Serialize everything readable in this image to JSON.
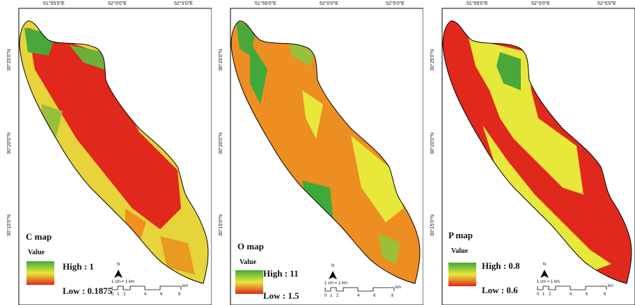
{
  "axis": {
    "lon_labels": [
      "51°55'0\"E",
      "52°0'0\"E",
      "52°5'0\"E"
    ],
    "lat_labels": [
      "30°25'0\"N",
      "30°20'0\"N",
      "30°15'0\"N"
    ]
  },
  "legend": {
    "value_label": "Value",
    "north_label": "N",
    "scale_text": "1 cm = 1 km",
    "scale_ticks": [
      "0",
      "1",
      "2",
      "4",
      "6",
      "8"
    ],
    "scale_unit": "km"
  },
  "panels": [
    {
      "title": "C map",
      "high": "High : 1",
      "low": "Low : 0.1875"
    },
    {
      "title": "O map",
      "high": "High : 11",
      "low": "Low : 1.5"
    },
    {
      "title": "P map",
      "high": "High : 0.8",
      "low": "Low : 0.6"
    }
  ],
  "colors": {
    "high": "#3faa3a",
    "mid": "#e8e83a",
    "orange": "#f0901e",
    "low": "#e0281c",
    "frame": "#000000"
  }
}
